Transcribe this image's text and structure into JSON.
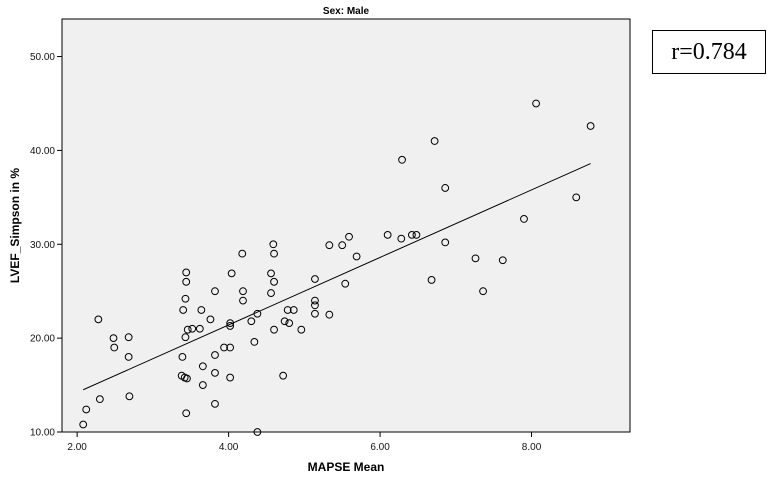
{
  "chart_data": {
    "type": "scatter",
    "title": "Sex: Male",
    "xlabel": "MAPSE Mean",
    "ylabel": "LVEF_Simpson in %",
    "xlim": [
      1.8,
      9.3
    ],
    "ylim": [
      10,
      54
    ],
    "xticks": [
      2.0,
      4.0,
      6.0,
      8.0
    ],
    "xtick_labels": [
      "2.00",
      "4.00",
      "6.00",
      "8.00"
    ],
    "yticks": [
      10,
      20,
      30,
      40,
      50
    ],
    "ytick_labels": [
      "10.00",
      "20.00",
      "30.00",
      "40.00",
      "50.00"
    ],
    "grid": false,
    "plot_background": "#f0f0f0",
    "marker_color": "#000000",
    "points": [
      {
        "x": 2.08,
        "y": 10.8
      },
      {
        "x": 2.12,
        "y": 12.4
      },
      {
        "x": 2.28,
        "y": 22.0
      },
      {
        "x": 2.3,
        "y": 13.5
      },
      {
        "x": 2.48,
        "y": 20.0
      },
      {
        "x": 2.49,
        "y": 19.0
      },
      {
        "x": 2.68,
        "y": 20.1
      },
      {
        "x": 2.68,
        "y": 18.0
      },
      {
        "x": 2.69,
        "y": 13.8
      },
      {
        "x": 3.38,
        "y": 16.0
      },
      {
        "x": 3.39,
        "y": 18.0
      },
      {
        "x": 3.4,
        "y": 23.0
      },
      {
        "x": 3.42,
        "y": 15.8
      },
      {
        "x": 3.43,
        "y": 20.1
      },
      {
        "x": 3.43,
        "y": 24.2
      },
      {
        "x": 3.44,
        "y": 27.0
      },
      {
        "x": 3.44,
        "y": 26.0
      },
      {
        "x": 3.45,
        "y": 15.7
      },
      {
        "x": 3.44,
        "y": 12.0
      },
      {
        "x": 3.46,
        "y": 20.9
      },
      {
        "x": 3.52,
        "y": 21.0
      },
      {
        "x": 3.62,
        "y": 21.0
      },
      {
        "x": 3.64,
        "y": 23.0
      },
      {
        "x": 3.66,
        "y": 17.0
      },
      {
        "x": 3.66,
        "y": 15.0
      },
      {
        "x": 3.76,
        "y": 22.0
      },
      {
        "x": 3.82,
        "y": 25.0
      },
      {
        "x": 3.82,
        "y": 18.2
      },
      {
        "x": 3.82,
        "y": 16.3
      },
      {
        "x": 3.82,
        "y": 13.0
      },
      {
        "x": 3.94,
        "y": 19.0
      },
      {
        "x": 4.02,
        "y": 21.6
      },
      {
        "x": 4.02,
        "y": 21.3
      },
      {
        "x": 4.02,
        "y": 19.0
      },
      {
        "x": 4.02,
        "y": 15.8
      },
      {
        "x": 4.04,
        "y": 26.9
      },
      {
        "x": 4.18,
        "y": 29.0
      },
      {
        "x": 4.19,
        "y": 25.0
      },
      {
        "x": 4.19,
        "y": 24.0
      },
      {
        "x": 4.3,
        "y": 21.8
      },
      {
        "x": 4.34,
        "y": 19.6
      },
      {
        "x": 4.38,
        "y": 22.6
      },
      {
        "x": 4.38,
        "y": 10.0
      },
      {
        "x": 4.56,
        "y": 26.9
      },
      {
        "x": 4.56,
        "y": 24.8
      },
      {
        "x": 4.59,
        "y": 30.0
      },
      {
        "x": 4.6,
        "y": 29.0
      },
      {
        "x": 4.6,
        "y": 26.0
      },
      {
        "x": 4.6,
        "y": 20.9
      },
      {
        "x": 4.72,
        "y": 16.0
      },
      {
        "x": 4.74,
        "y": 21.8
      },
      {
        "x": 4.78,
        "y": 23.0
      },
      {
        "x": 4.8,
        "y": 21.6
      },
      {
        "x": 4.86,
        "y": 23.0
      },
      {
        "x": 4.96,
        "y": 20.9
      },
      {
        "x": 5.14,
        "y": 26.3
      },
      {
        "x": 5.14,
        "y": 24.0
      },
      {
        "x": 5.14,
        "y": 23.5
      },
      {
        "x": 5.14,
        "y": 22.6
      },
      {
        "x": 5.33,
        "y": 29.9
      },
      {
        "x": 5.33,
        "y": 22.5
      },
      {
        "x": 5.5,
        "y": 29.9
      },
      {
        "x": 5.54,
        "y": 25.8
      },
      {
        "x": 5.59,
        "y": 30.8
      },
      {
        "x": 5.69,
        "y": 28.7
      },
      {
        "x": 6.1,
        "y": 31.0
      },
      {
        "x": 6.28,
        "y": 30.6
      },
      {
        "x": 6.29,
        "y": 39.0
      },
      {
        "x": 6.42,
        "y": 31.0
      },
      {
        "x": 6.48,
        "y": 31.0
      },
      {
        "x": 6.68,
        "y": 26.2
      },
      {
        "x": 6.72,
        "y": 41.0
      },
      {
        "x": 6.86,
        "y": 36.0
      },
      {
        "x": 6.86,
        "y": 30.2
      },
      {
        "x": 7.26,
        "y": 28.5
      },
      {
        "x": 7.36,
        "y": 25.0
      },
      {
        "x": 7.62,
        "y": 28.3
      },
      {
        "x": 7.9,
        "y": 32.7
      },
      {
        "x": 8.06,
        "y": 45.0
      },
      {
        "x": 8.59,
        "y": 35.0
      },
      {
        "x": 8.78,
        "y": 42.6
      }
    ],
    "fit_line": {
      "x": [
        2.08,
        8.78
      ],
      "y": [
        14.5,
        38.6
      ]
    },
    "annotation": "r=0.784"
  }
}
